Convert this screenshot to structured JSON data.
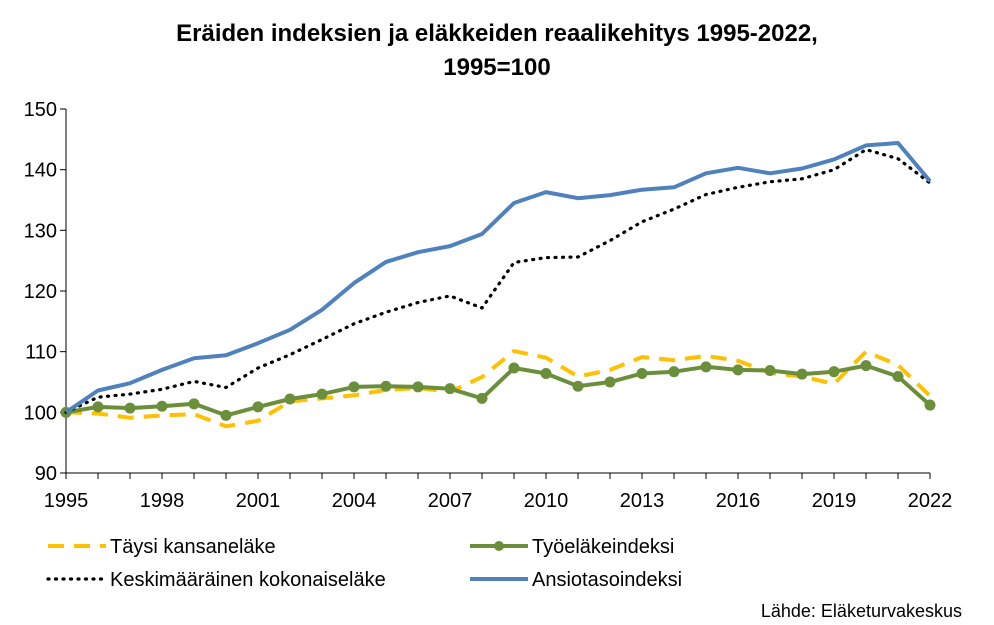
{
  "chart_data": {
    "type": "line",
    "title_line1": "Eräiden indeksien ja eläkkeiden reaalikehitys 1995-2022,",
    "title_line2": "1995=100",
    "source": "Lähde: Eläketurvakeskus",
    "xlabel": "",
    "ylabel": "",
    "xlim": [
      1995,
      2022
    ],
    "ylim": [
      90,
      150
    ],
    "yticks": [
      90,
      100,
      110,
      120,
      130,
      140,
      150
    ],
    "xticks": [
      1995,
      1998,
      2001,
      2004,
      2007,
      2010,
      2013,
      2016,
      2019,
      2022
    ],
    "grid": false,
    "x": [
      1995,
      1996,
      1997,
      1998,
      1999,
      2000,
      2001,
      2002,
      2003,
      2004,
      2005,
      2006,
      2007,
      2008,
      2009,
      2010,
      2011,
      2012,
      2013,
      2014,
      2015,
      2016,
      2017,
      2018,
      2019,
      2020,
      2021,
      2022
    ],
    "series": [
      {
        "name": "Täysi kansaneläke",
        "color": "#FFC000",
        "style": "dashed",
        "values": [
          100.0,
          99.8,
          99.1,
          99.5,
          99.7,
          97.7,
          98.6,
          101.8,
          102.3,
          102.8,
          103.7,
          104.0,
          103.4,
          105.8,
          110.1,
          109.0,
          105.9,
          107.0,
          109.1,
          108.6,
          109.3,
          108.5,
          106.5,
          105.9,
          104.7,
          110.0,
          107.8,
          102.7
        ]
      },
      {
        "name": "Työeläkeindeksi",
        "color": "#6B8E3A",
        "style": "solid-markers",
        "values": [
          100.0,
          100.9,
          100.7,
          101.0,
          101.4,
          99.5,
          100.9,
          102.2,
          103.0,
          104.2,
          104.3,
          104.2,
          103.9,
          102.3,
          107.3,
          106.4,
          104.3,
          105.0,
          106.4,
          106.7,
          107.5,
          107.0,
          106.9,
          106.3,
          106.7,
          107.7,
          105.9,
          101.2
        ]
      },
      {
        "name": "Keskimääräinen kokonaiseläke",
        "color": "#000000",
        "style": "dotted",
        "values": [
          100.0,
          102.5,
          103.0,
          103.8,
          105.1,
          104.1,
          107.3,
          109.5,
          112.0,
          114.6,
          116.5,
          118.1,
          119.2,
          117.2,
          124.7,
          125.5,
          125.6,
          128.3,
          131.4,
          133.5,
          135.9,
          137.1,
          138.0,
          138.5,
          140.0,
          143.3,
          141.8,
          137.8
        ]
      },
      {
        "name": "Ansiotasoindeksi",
        "color": "#4F81BD",
        "style": "solid",
        "values": [
          100.0,
          103.6,
          104.8,
          107.0,
          108.9,
          109.4,
          111.4,
          113.6,
          116.9,
          121.3,
          124.8,
          126.4,
          127.4,
          129.4,
          134.5,
          136.3,
          135.3,
          135.8,
          136.7,
          137.1,
          139.4,
          140.3,
          139.4,
          140.2,
          141.7,
          144.0,
          144.4,
          138.1
        ]
      }
    ],
    "legend_position": "bottom"
  }
}
